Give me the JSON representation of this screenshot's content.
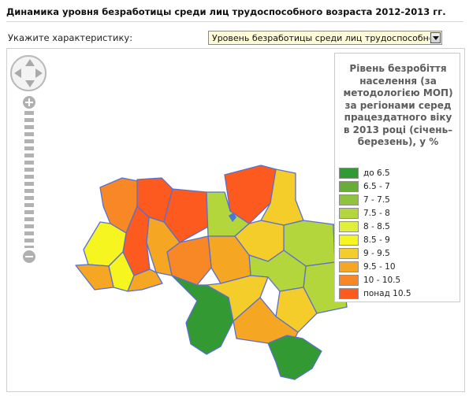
{
  "page": {
    "title": "Динамика уровня безработицы среди лиц трудоспособного возраста 2012-2013 гг."
  },
  "picker": {
    "label": "Укажите характеристику:",
    "selected": "Уровень безработицы среди лиц трудоспособного возраста"
  },
  "legend": {
    "title": "Рівень безробіття населення (за методологією МОП) за регіонами серед працездатного віку в 2013 році (січень–березень), у %",
    "items": [
      {
        "label": "до 6.5",
        "color": "#339a33"
      },
      {
        "label": "6.5 - 7",
        "color": "#67ad36"
      },
      {
        "label": "7 - 7.5",
        "color": "#8fc23d"
      },
      {
        "label": "7.5 - 8",
        "color": "#b2d63b"
      },
      {
        "label": "8 - 8.5",
        "color": "#e0ee3c"
      },
      {
        "label": "8.5 - 9",
        "color": "#f7f51f"
      },
      {
        "label": "9 - 9.5",
        "color": "#f5cd2a"
      },
      {
        "label": "9.5 - 10",
        "color": "#f5a623"
      },
      {
        "label": "10 - 10.5",
        "color": "#f88726"
      },
      {
        "label": "понад 10.5",
        "color": "#fc5a1e"
      }
    ]
  },
  "map": {
    "border_color": "#5a6fd0",
    "water_color": "#4a78d8"
  },
  "controls": {
    "pan_icon": "pan-control-icon",
    "zoom_in_icon": "zoom-in-icon",
    "zoom_out_icon": "zoom-out-icon"
  }
}
